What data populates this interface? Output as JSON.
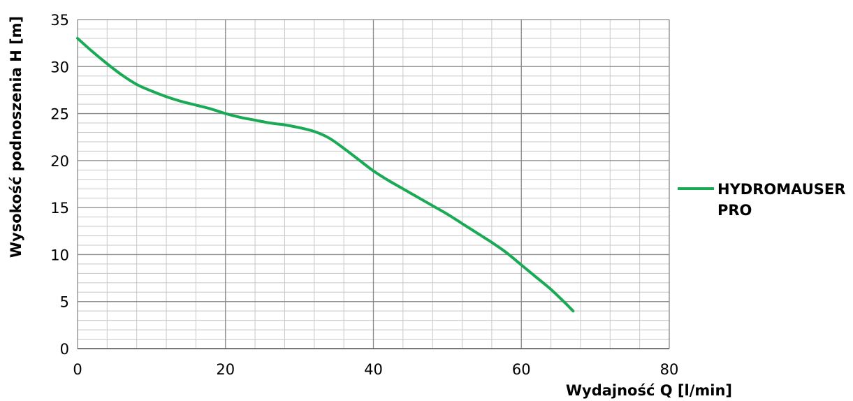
{
  "chart_data": {
    "type": "line",
    "xlabel": "Wydajność Q [l/min]",
    "ylabel": "Wysokość podnoszenia H [m]",
    "xlim": [
      0,
      80
    ],
    "ylim": [
      0,
      35
    ],
    "x_ticks": [
      "0",
      "20",
      "40",
      "60",
      "80"
    ],
    "y_ticks": [
      "0",
      "5",
      "10",
      "15",
      "20",
      "25",
      "30",
      "35"
    ],
    "grid": true,
    "legend_position": "right",
    "series": [
      {
        "name": [
          "HYDROMAUSER",
          "PRO"
        ],
        "color": "#1aaa55",
        "x": [
          0,
          2,
          4,
          6,
          8,
          10,
          12,
          14,
          16,
          18,
          20,
          22,
          24,
          26,
          28,
          30,
          32,
          34,
          36,
          38,
          40,
          42,
          44,
          46,
          48,
          50,
          52,
          54,
          56,
          58,
          60,
          62,
          64,
          66,
          67
        ],
        "y": [
          33.0,
          31.6,
          30.3,
          29.1,
          28.1,
          27.4,
          26.8,
          26.3,
          25.9,
          25.5,
          25.0,
          24.6,
          24.3,
          24.0,
          23.8,
          23.5,
          23.1,
          22.4,
          21.3,
          20.1,
          18.9,
          17.9,
          17.0,
          16.1,
          15.2,
          14.3,
          13.3,
          12.3,
          11.3,
          10.2,
          8.9,
          7.6,
          6.3,
          4.8,
          4.0
        ]
      }
    ]
  }
}
